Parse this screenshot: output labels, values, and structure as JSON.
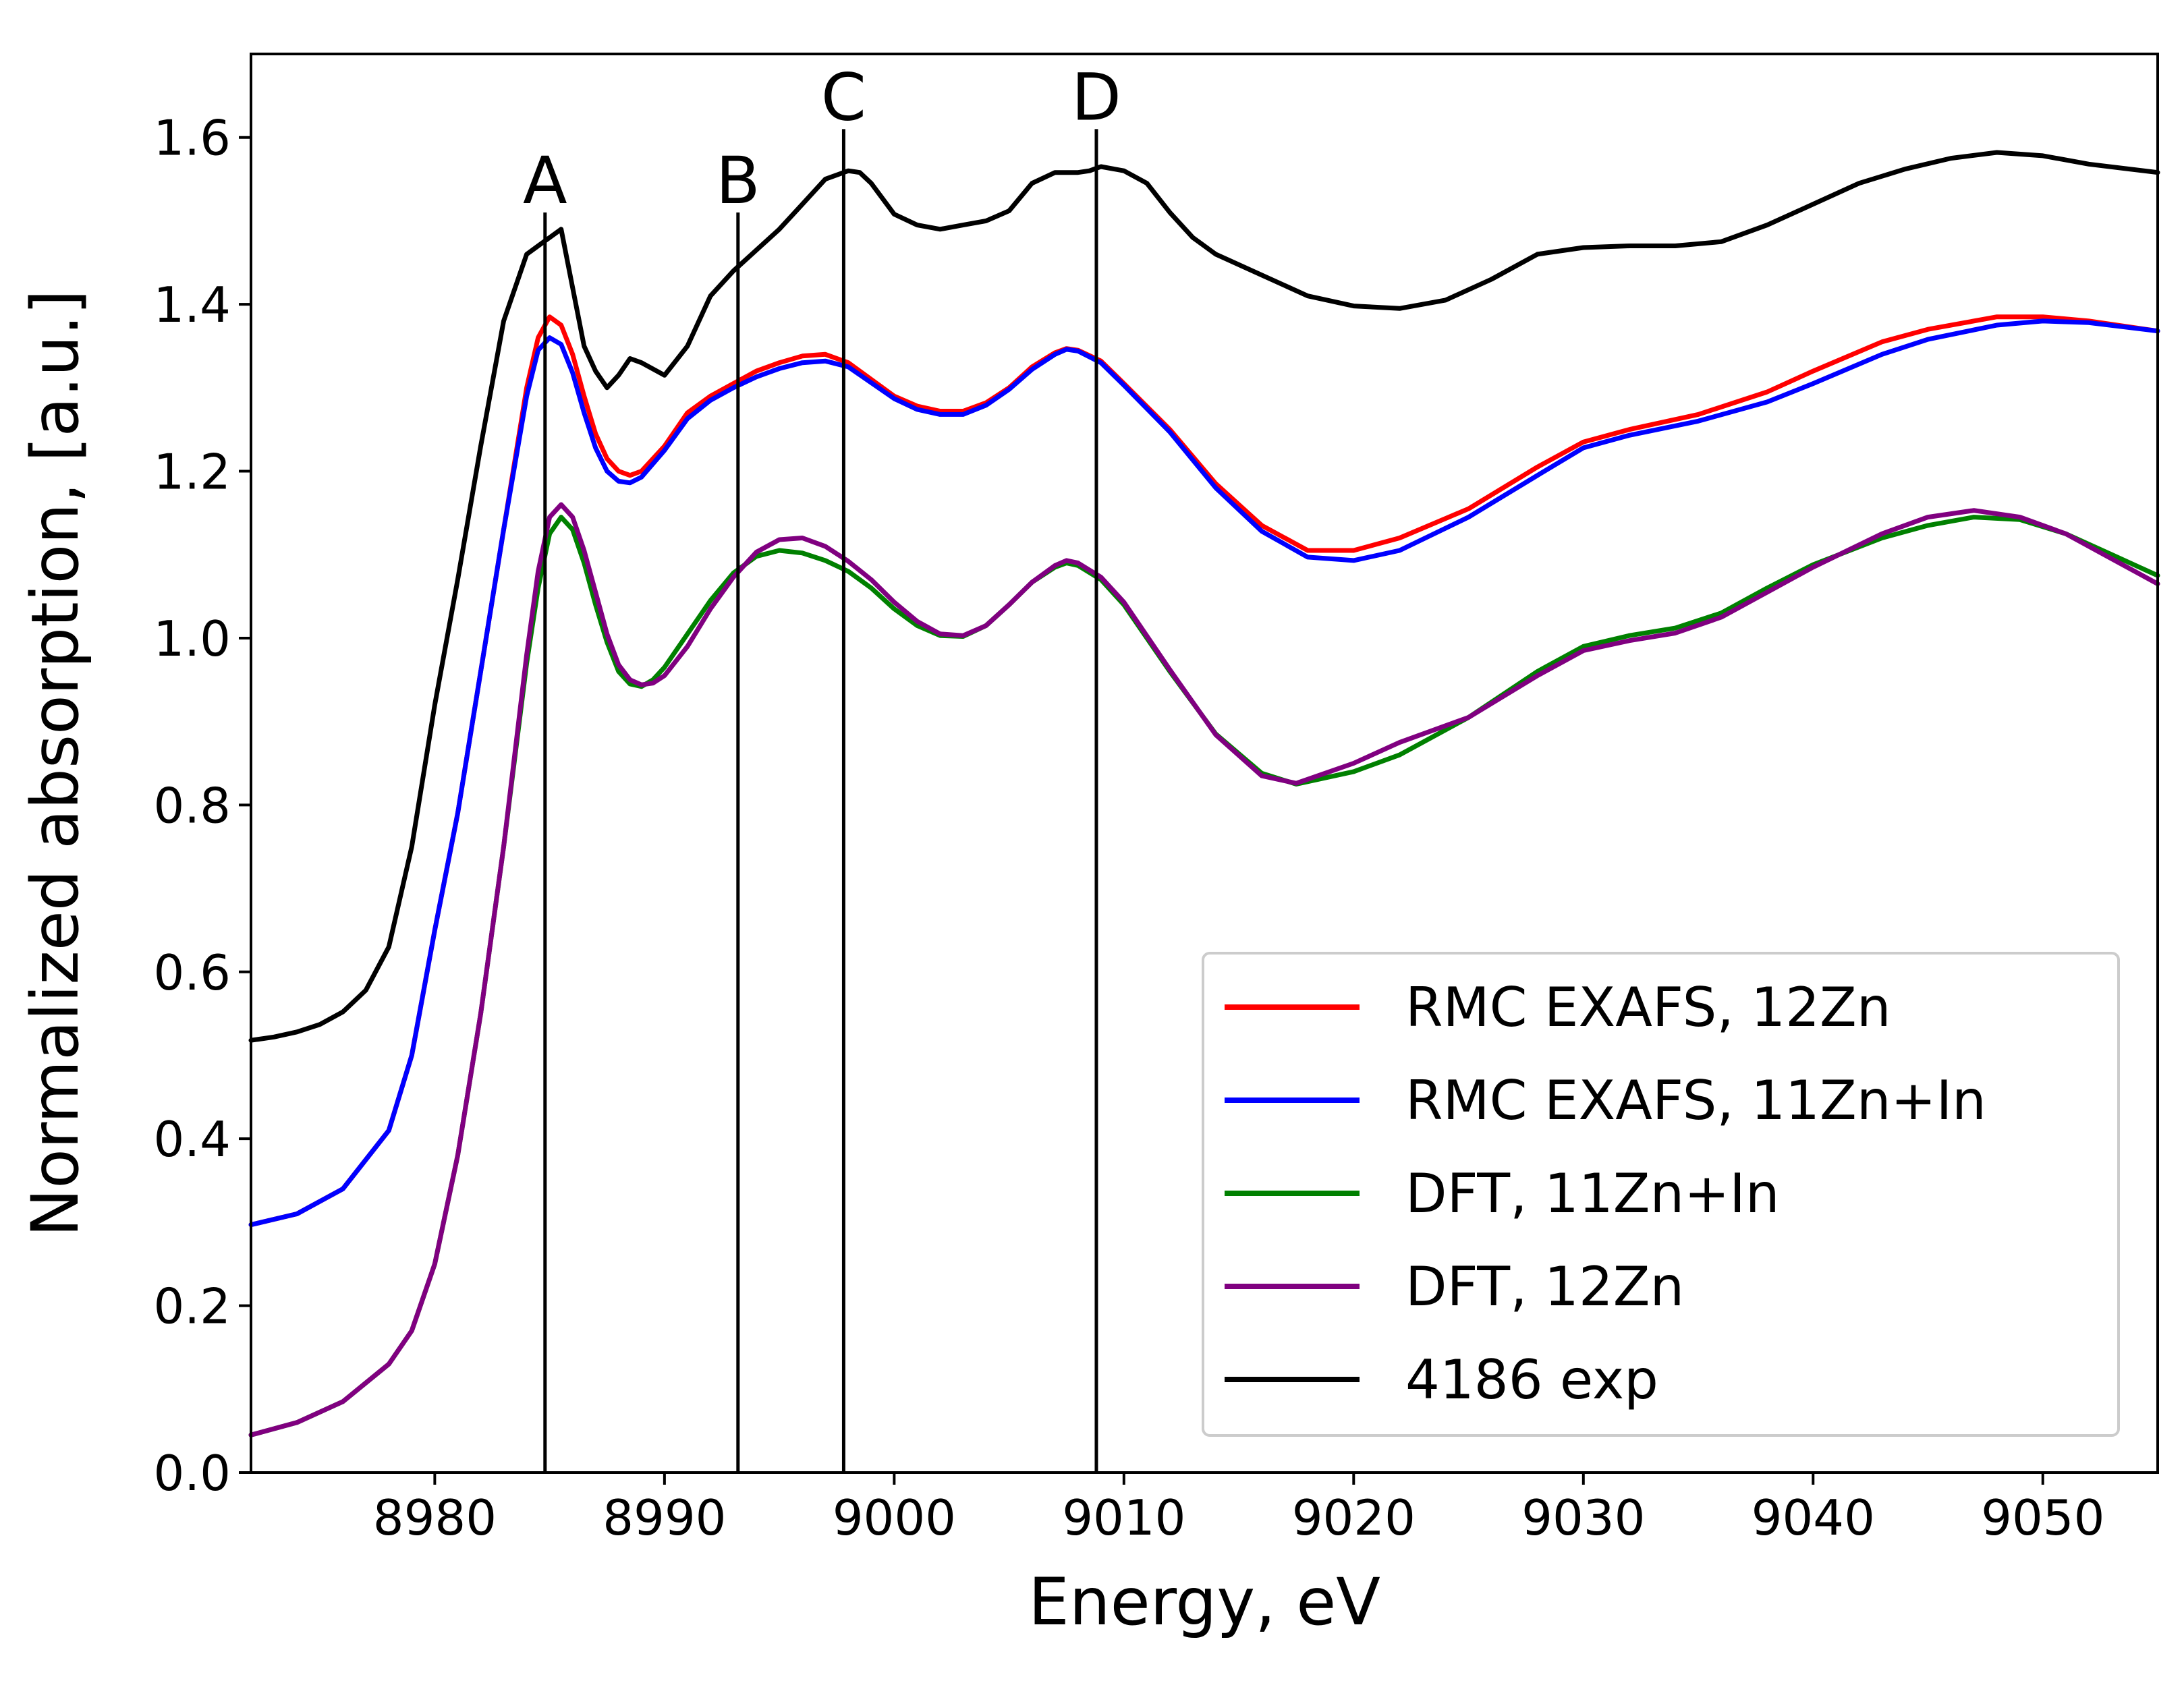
{
  "chart_data": {
    "type": "line",
    "title": "",
    "xlabel": "Energy, eV",
    "ylabel": "Normalized absorption, [a.u.]",
    "xlim": [
      8972,
      9055
    ],
    "ylim": [
      0.0,
      1.7
    ],
    "xticks": [
      8980,
      8990,
      9000,
      9010,
      9020,
      9030,
      9040,
      9050
    ],
    "xtick_labels": [
      "8980",
      "8990",
      "9000",
      "9010",
      "9020",
      "9030",
      "9040",
      "9050"
    ],
    "yticks": [
      0.0,
      0.2,
      0.4,
      0.6,
      0.8,
      1.0,
      1.2,
      1.4,
      1.6
    ],
    "ytick_labels": [
      "0.0",
      "0.2",
      "0.4",
      "0.6",
      "0.8",
      "1.0",
      "1.2",
      "1.4",
      "1.6"
    ],
    "grid": false,
    "legend_position": "lower-right",
    "vertical_markers": [
      {
        "label": "A",
        "x": 8984.8,
        "y_top": 1.51
      },
      {
        "label": "B",
        "x": 8993.2,
        "y_top": 1.51
      },
      {
        "label": "C",
        "x": 8997.8,
        "y_top": 1.61
      },
      {
        "label": "D",
        "x": 9008.8,
        "y_top": 1.61
      }
    ],
    "series": [
      {
        "name": "RMC EXAFS, 12Zn",
        "color": "#ff0000",
        "x": [
          8972,
          8974,
          8976,
          8978,
          8979,
          8980,
          8981,
          8982,
          8983,
          8984,
          8984.5,
          8985,
          8985.5,
          8986,
          8986.5,
          8987,
          8987.5,
          8988,
          8988.5,
          8989,
          8990,
          8991,
          8992,
          8993,
          8994,
          8995,
          8996,
          8997,
          8998,
          8999,
          9000,
          9001,
          9002,
          9003,
          9004,
          9005,
          9006,
          9007,
          9007.5,
          9008,
          9009,
          9010,
          9012,
          9014,
          9016,
          9018,
          9020,
          9022,
          9025,
          9028,
          9030,
          9032,
          9035,
          9038,
          9040,
          9043,
          9045,
          9048,
          9050,
          9052,
          9055
        ],
        "values": [
          0.297,
          0.31,
          0.34,
          0.41,
          0.5,
          0.65,
          0.79,
          0.96,
          1.13,
          1.3,
          1.36,
          1.385,
          1.375,
          1.34,
          1.29,
          1.245,
          1.215,
          1.2,
          1.195,
          1.2,
          1.23,
          1.27,
          1.29,
          1.305,
          1.32,
          1.33,
          1.338,
          1.34,
          1.33,
          1.31,
          1.29,
          1.278,
          1.272,
          1.272,
          1.282,
          1.3,
          1.325,
          1.342,
          1.347,
          1.345,
          1.332,
          1.305,
          1.25,
          1.185,
          1.135,
          1.105,
          1.105,
          1.12,
          1.155,
          1.205,
          1.235,
          1.25,
          1.268,
          1.295,
          1.32,
          1.355,
          1.37,
          1.385,
          1.385,
          1.38,
          1.368
        ]
      },
      {
        "name": "RMC EXAFS, 11Zn+In",
        "color": "#0000ff",
        "x": [
          8972,
          8974,
          8976,
          8978,
          8979,
          8980,
          8981,
          8982,
          8983,
          8984,
          8984.5,
          8985,
          8985.5,
          8986,
          8986.5,
          8987,
          8987.5,
          8988,
          8988.5,
          8989,
          8990,
          8991,
          8992,
          8993,
          8994,
          8995,
          8996,
          8997,
          8998,
          8999,
          9000,
          9001,
          9002,
          9003,
          9004,
          9005,
          9006,
          9007,
          9007.5,
          9008,
          9009,
          9010,
          9012,
          9014,
          9016,
          9018,
          9020,
          9022,
          9025,
          9028,
          9030,
          9032,
          9035,
          9038,
          9040,
          9043,
          9045,
          9048,
          9050,
          9052,
          9055
        ],
        "values": [
          0.297,
          0.31,
          0.34,
          0.41,
          0.5,
          0.65,
          0.79,
          0.96,
          1.13,
          1.29,
          1.345,
          1.36,
          1.352,
          1.318,
          1.27,
          1.228,
          1.2,
          1.188,
          1.186,
          1.193,
          1.225,
          1.263,
          1.285,
          1.3,
          1.313,
          1.323,
          1.33,
          1.332,
          1.325,
          1.306,
          1.287,
          1.274,
          1.268,
          1.268,
          1.279,
          1.298,
          1.322,
          1.34,
          1.346,
          1.344,
          1.33,
          1.303,
          1.247,
          1.18,
          1.128,
          1.097,
          1.093,
          1.105,
          1.145,
          1.195,
          1.228,
          1.243,
          1.26,
          1.283,
          1.305,
          1.34,
          1.358,
          1.375,
          1.38,
          1.378,
          1.368
        ]
      },
      {
        "name": "DFT, 11Zn+In",
        "color": "#008000",
        "x": [
          8972,
          8974,
          8976,
          8978,
          8979,
          8980,
          8981,
          8982,
          8983,
          8984,
          8984.5,
          8985,
          8985.5,
          8986,
          8986.5,
          8987,
          8987.5,
          8988,
          8988.5,
          8989,
          8989.5,
          8990,
          8991,
          8992,
          8993,
          8994,
          8995,
          8996,
          8997,
          8998,
          8999,
          9000,
          9001,
          9002,
          9003,
          9004,
          9005,
          9006,
          9007,
          9007.5,
          9008,
          9009,
          9010,
          9012,
          9014,
          9016,
          9017.5,
          9020,
          9022,
          9025,
          9028,
          9030,
          9032,
          9034,
          9036,
          9038,
          9040,
          9043,
          9045,
          9047,
          9049,
          9051,
          9053,
          9055
        ],
        "values": [
          0.045,
          0.06,
          0.085,
          0.13,
          0.17,
          0.25,
          0.38,
          0.55,
          0.75,
          0.97,
          1.06,
          1.125,
          1.145,
          1.13,
          1.09,
          1.04,
          0.995,
          0.96,
          0.945,
          0.942,
          0.95,
          0.965,
          1.005,
          1.045,
          1.078,
          1.098,
          1.105,
          1.102,
          1.093,
          1.08,
          1.06,
          1.035,
          1.015,
          1.003,
          1.002,
          1.015,
          1.04,
          1.067,
          1.085,
          1.09,
          1.087,
          1.07,
          1.04,
          0.96,
          0.885,
          0.838,
          0.825,
          0.84,
          0.86,
          0.905,
          0.96,
          0.99,
          1.003,
          1.012,
          1.03,
          1.06,
          1.088,
          1.12,
          1.135,
          1.145,
          1.142,
          1.125,
          1.1,
          1.075
        ]
      },
      {
        "name": "DFT, 12Zn",
        "color": "#800080",
        "x": [
          8972,
          8974,
          8976,
          8978,
          8979,
          8980,
          8981,
          8982,
          8983,
          8984,
          8984.5,
          8985,
          8985.5,
          8986,
          8986.5,
          8987,
          8987.5,
          8988,
          8988.5,
          8989,
          8989.5,
          8990,
          8991,
          8992,
          8993,
          8994,
          8995,
          8996,
          8997,
          8998,
          8999,
          9000,
          9001,
          9002,
          9003,
          9004,
          9005,
          9006,
          9007,
          9007.5,
          9008,
          9009,
          9010,
          9012,
          9014,
          9016,
          9017.5,
          9020,
          9022,
          9025,
          9028,
          9030,
          9032,
          9034,
          9036,
          9038,
          9040,
          9043,
          9045,
          9047,
          9049,
          9051,
          9053,
          9055
        ],
        "values": [
          0.045,
          0.06,
          0.085,
          0.13,
          0.17,
          0.25,
          0.38,
          0.55,
          0.75,
          0.98,
          1.08,
          1.145,
          1.16,
          1.145,
          1.105,
          1.055,
          1.005,
          0.968,
          0.95,
          0.944,
          0.946,
          0.955,
          0.99,
          1.035,
          1.073,
          1.103,
          1.118,
          1.12,
          1.11,
          1.092,
          1.07,
          1.043,
          1.02,
          1.005,
          1.003,
          1.015,
          1.04,
          1.067,
          1.087,
          1.093,
          1.09,
          1.073,
          1.043,
          0.962,
          0.884,
          0.835,
          0.826,
          0.85,
          0.875,
          0.905,
          0.955,
          0.985,
          0.997,
          1.006,
          1.025,
          1.055,
          1.085,
          1.125,
          1.145,
          1.153,
          1.145,
          1.125,
          1.095,
          1.065
        ]
      },
      {
        "name": "4186 exp",
        "color": "#000000",
        "x": [
          8972,
          8973,
          8974,
          8975,
          8976,
          8977,
          8978,
          8979,
          8980,
          8981,
          8982,
          8983,
          8984,
          8984.5,
          8985,
          8985.5,
          8986,
          8986.5,
          8987,
          8987.5,
          8988,
          8988.5,
          8989,
          8990,
          8991,
          8992,
          8993,
          8994,
          8995,
          8996,
          8997,
          8998,
          8998.5,
          8999,
          9000,
          9001,
          9002,
          9003,
          9004,
          9005,
          9006,
          9007,
          9008,
          9008.5,
          9009,
          9010,
          9011,
          9012,
          9013,
          9014,
          9016,
          9018,
          9020,
          9022,
          9024,
          9026,
          9028,
          9030,
          9032,
          9034,
          9036,
          9038,
          9040,
          9042,
          9044,
          9046,
          9048,
          9050,
          9052,
          9055
        ],
        "values": [
          0.518,
          0.522,
          0.528,
          0.537,
          0.552,
          0.578,
          0.63,
          0.75,
          0.92,
          1.07,
          1.23,
          1.38,
          1.46,
          1.47,
          1.48,
          1.49,
          1.42,
          1.35,
          1.32,
          1.3,
          1.315,
          1.335,
          1.33,
          1.315,
          1.35,
          1.41,
          1.44,
          1.465,
          1.49,
          1.52,
          1.55,
          1.56,
          1.558,
          1.545,
          1.508,
          1.495,
          1.49,
          1.495,
          1.5,
          1.512,
          1.545,
          1.558,
          1.558,
          1.56,
          1.565,
          1.56,
          1.545,
          1.51,
          1.48,
          1.46,
          1.435,
          1.41,
          1.398,
          1.395,
          1.405,
          1.43,
          1.46,
          1.468,
          1.47,
          1.47,
          1.475,
          1.495,
          1.52,
          1.545,
          1.562,
          1.575,
          1.582,
          1.578,
          1.568,
          1.558
        ]
      }
    ]
  }
}
